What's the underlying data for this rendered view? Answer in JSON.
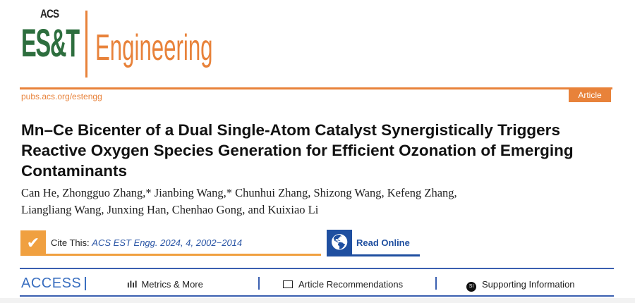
{
  "journal": {
    "logo_top": "ACS",
    "logo_mid": "ES&T",
    "logo_name": "Engineering",
    "url": "pubs.acs.org/estengg",
    "type_badge": "Article",
    "brand_orange": "#e8823a",
    "brand_green": "#2d6e3e"
  },
  "article": {
    "title": "Mn–Ce Bicenter of a Dual Single-Atom Catalyst Synergistically Triggers Reactive Oxygen Species Generation for Efficient Ozonation of Emerging Contaminants",
    "authors_line1": "Can He, Zhongguo Zhang,* Jianbing Wang,* Chunhui Zhang, Shizong Wang, Kefeng Zhang,",
    "authors_line2": "Liangliang Wang, Junxing Han, Chenhao Gong, and Kuixiao Li"
  },
  "cite": {
    "label": "Cite This:",
    "reference": "ACS EST Engg. 2024, 4, 2002−2014",
    "icon": "check-icon"
  },
  "read_online": {
    "label": "Read Online",
    "icon": "globe-icon"
  },
  "access": {
    "label": "ACCESS",
    "tabs": [
      {
        "label": "Metrics & More",
        "icon": "bar-chart-icon"
      },
      {
        "label": "Article Recommendations",
        "icon": "article-icon"
      },
      {
        "label": "Supporting Information",
        "icon": "si-icon",
        "icon_text": "SI"
      }
    ]
  }
}
